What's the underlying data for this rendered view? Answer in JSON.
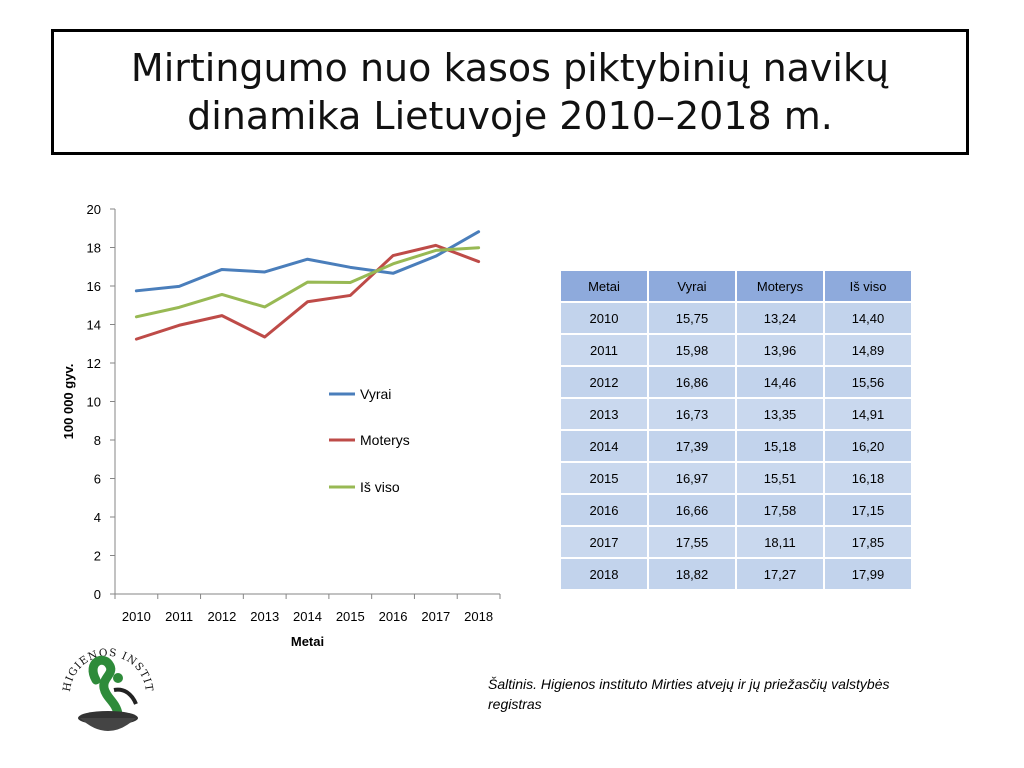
{
  "title": {
    "line1": "Mirtingumo nuo kasos piktybinių navikų",
    "line2": "dinamika Lietuvoje 2010–2018 m."
  },
  "chart_data": {
    "type": "line",
    "categories": [
      "2010",
      "2011",
      "2012",
      "2013",
      "2014",
      "2015",
      "2016",
      "2017",
      "2018"
    ],
    "series": [
      {
        "name": "Vyrai",
        "color": "#4a7ebb",
        "values": [
          15.75,
          15.98,
          16.86,
          16.73,
          17.39,
          16.97,
          16.66,
          17.55,
          18.82
        ]
      },
      {
        "name": "Moterys",
        "color": "#be4b48",
        "values": [
          13.24,
          13.96,
          14.46,
          13.35,
          15.18,
          15.51,
          17.58,
          18.11,
          17.27
        ]
      },
      {
        "name": "Iš viso",
        "color": "#98b954",
        "values": [
          14.4,
          14.89,
          15.56,
          14.91,
          16.2,
          16.18,
          17.15,
          17.85,
          17.99
        ]
      }
    ],
    "xlabel": "Metai",
    "ylabel": "100 000 gyv.",
    "ylim": [
      0,
      20
    ],
    "yticks": [
      0,
      2,
      4,
      6,
      8,
      10,
      12,
      14,
      16,
      18,
      20
    ],
    "legend": "inside-right",
    "grid": false
  },
  "table": {
    "headers": [
      "Metai",
      "Vyrai",
      "Moterys",
      "Iš viso"
    ],
    "rows": [
      [
        "2010",
        "15,75",
        "13,24",
        "14,40"
      ],
      [
        "2011",
        "15,98",
        "13,96",
        "14,89"
      ],
      [
        "2012",
        "16,86",
        "14,46",
        "15,56"
      ],
      [
        "2013",
        "16,73",
        "13,35",
        "14,91"
      ],
      [
        "2014",
        "17,39",
        "15,18",
        "16,20"
      ],
      [
        "2015",
        "16,97",
        "15,51",
        "16,18"
      ],
      [
        "2016",
        "16,66",
        "17,58",
        "17,15"
      ],
      [
        "2017",
        "17,55",
        "18,11",
        "17,85"
      ],
      [
        "2018",
        "18,82",
        "17,27",
        "17,99"
      ]
    ]
  },
  "source": "Šaltinis. Higienos instituto  Mirties atvejų ir jų priežasčių valstybės registras",
  "logo": {
    "text": "HIGIENOS INSTITUTAS",
    "color": "#2e8b3a",
    "icon": "higienos-institutas-logo"
  }
}
